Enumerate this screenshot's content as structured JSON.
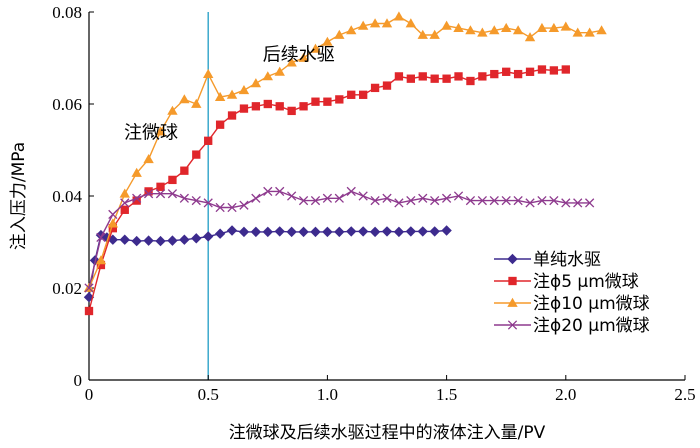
{
  "chart_data": {
    "type": "line",
    "xlabel": "注微球及后续水驱过程中的液体注入量/PV",
    "ylabel": "注入压力/MPa",
    "xlim": [
      0,
      2.5
    ],
    "ylim": [
      0,
      0.08
    ],
    "xticks": [
      0,
      0.5,
      1.0,
      1.5,
      2.0,
      2.5
    ],
    "xtick_labels": [
      "0",
      "0.5",
      "1.0",
      "1.5",
      "2.0",
      "2.5"
    ],
    "yticks": [
      0,
      0.02,
      0.04,
      0.06,
      0.08
    ],
    "ytick_labels": [
      "0",
      "0.02",
      "0.04",
      "0.06",
      "0.08"
    ],
    "grid": false,
    "legend_position": "bottom-right",
    "vertical_line_x": 0.5,
    "annotations": [
      {
        "text": "注微球",
        "x": 0.26,
        "y": 0.0525
      },
      {
        "text": "后续水驱",
        "x": 0.88,
        "y": 0.0695
      }
    ],
    "series": [
      {
        "name": "单纯水驱",
        "marker": "diamond",
        "color": "#3d2b8e",
        "x": [
          0.0,
          0.025,
          0.05,
          0.075,
          0.1,
          0.15,
          0.2,
          0.25,
          0.3,
          0.35,
          0.4,
          0.45,
          0.5,
          0.55,
          0.6,
          0.65,
          0.7,
          0.75,
          0.8,
          0.85,
          0.9,
          0.95,
          1.0,
          1.05,
          1.1,
          1.15,
          1.2,
          1.25,
          1.3,
          1.35,
          1.4,
          1.45,
          1.5
        ],
        "y": [
          0.018,
          0.026,
          0.0315,
          0.031,
          0.0305,
          0.0305,
          0.0302,
          0.0303,
          0.0302,
          0.0303,
          0.0305,
          0.0308,
          0.0312,
          0.0318,
          0.0325,
          0.0322,
          0.0322,
          0.0322,
          0.0323,
          0.0322,
          0.0322,
          0.0322,
          0.0322,
          0.0322,
          0.0323,
          0.0323,
          0.0322,
          0.0323,
          0.0322,
          0.0323,
          0.0323,
          0.0323,
          0.0325
        ]
      },
      {
        "name": "注ϕ5 μm微球",
        "marker": "square",
        "color": "#e0262b",
        "x": [
          0.0,
          0.05,
          0.1,
          0.15,
          0.2,
          0.25,
          0.3,
          0.35,
          0.4,
          0.45,
          0.5,
          0.55,
          0.6,
          0.65,
          0.7,
          0.75,
          0.8,
          0.85,
          0.9,
          0.95,
          1.0,
          1.05,
          1.1,
          1.15,
          1.2,
          1.25,
          1.3,
          1.35,
          1.4,
          1.45,
          1.5,
          1.55,
          1.6,
          1.65,
          1.7,
          1.75,
          1.8,
          1.85,
          1.9,
          1.95,
          2.0
        ],
        "y": [
          0.015,
          0.025,
          0.033,
          0.037,
          0.039,
          0.041,
          0.042,
          0.0435,
          0.0455,
          0.049,
          0.052,
          0.0555,
          0.0575,
          0.059,
          0.0595,
          0.06,
          0.0595,
          0.0585,
          0.0595,
          0.0605,
          0.0605,
          0.061,
          0.062,
          0.062,
          0.0635,
          0.064,
          0.066,
          0.0655,
          0.066,
          0.0655,
          0.0655,
          0.066,
          0.065,
          0.066,
          0.0665,
          0.067,
          0.0665,
          0.067,
          0.0675,
          0.0673,
          0.0675
        ]
      },
      {
        "name": "注ϕ10 μm微球",
        "marker": "triangle",
        "color": "#f59a2b",
        "x": [
          0.0,
          0.05,
          0.1,
          0.15,
          0.2,
          0.25,
          0.3,
          0.35,
          0.4,
          0.45,
          0.5,
          0.55,
          0.6,
          0.65,
          0.7,
          0.75,
          0.8,
          0.85,
          0.9,
          0.95,
          1.0,
          1.05,
          1.1,
          1.15,
          1.2,
          1.25,
          1.3,
          1.35,
          1.4,
          1.45,
          1.5,
          1.55,
          1.6,
          1.65,
          1.7,
          1.75,
          1.8,
          1.85,
          1.9,
          1.95,
          2.0,
          2.05,
          2.1,
          2.15
        ],
        "y": [
          0.02,
          0.026,
          0.034,
          0.0405,
          0.045,
          0.048,
          0.054,
          0.0585,
          0.061,
          0.06,
          0.0665,
          0.0615,
          0.062,
          0.063,
          0.0645,
          0.066,
          0.067,
          0.069,
          0.07,
          0.072,
          0.0735,
          0.075,
          0.076,
          0.077,
          0.0775,
          0.0775,
          0.079,
          0.0775,
          0.075,
          0.075,
          0.077,
          0.0765,
          0.076,
          0.0755,
          0.076,
          0.0765,
          0.076,
          0.0745,
          0.0765,
          0.0765,
          0.0768,
          0.0755,
          0.0755,
          0.076
        ]
      },
      {
        "name": "注ϕ20 μm微球",
        "marker": "x",
        "color": "#8e3a8e",
        "x": [
          0.0,
          0.05,
          0.1,
          0.15,
          0.2,
          0.25,
          0.3,
          0.35,
          0.4,
          0.45,
          0.5,
          0.55,
          0.6,
          0.65,
          0.7,
          0.75,
          0.8,
          0.85,
          0.9,
          0.95,
          1.0,
          1.05,
          1.1,
          1.15,
          1.2,
          1.25,
          1.3,
          1.35,
          1.4,
          1.45,
          1.5,
          1.55,
          1.6,
          1.65,
          1.7,
          1.75,
          1.8,
          1.85,
          1.9,
          1.95,
          2.0,
          2.05,
          2.1
        ],
        "y": [
          0.02,
          0.031,
          0.036,
          0.0385,
          0.0395,
          0.0405,
          0.0405,
          0.0405,
          0.0395,
          0.039,
          0.0385,
          0.0375,
          0.0375,
          0.038,
          0.0395,
          0.041,
          0.041,
          0.04,
          0.039,
          0.039,
          0.0395,
          0.0395,
          0.041,
          0.04,
          0.039,
          0.0395,
          0.0385,
          0.039,
          0.0395,
          0.039,
          0.0395,
          0.04,
          0.039,
          0.039,
          0.039,
          0.039,
          0.039,
          0.0385,
          0.039,
          0.039,
          0.0385,
          0.0385,
          0.0385
        ]
      }
    ]
  }
}
